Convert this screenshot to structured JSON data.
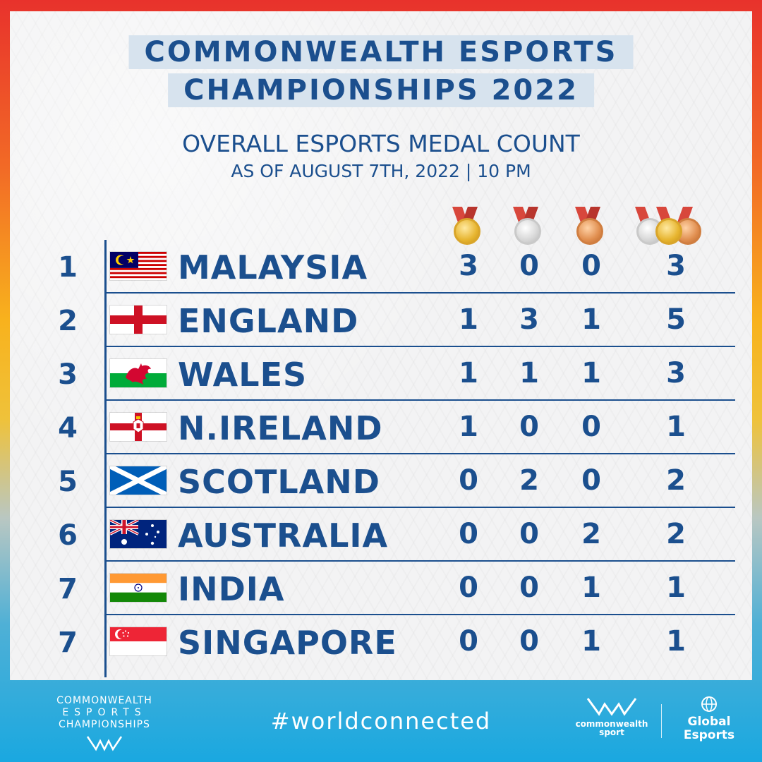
{
  "header": {
    "title_line1": "COMMONWEALTH ESPORTS",
    "title_line2": "CHAMPIONSHIPS 2022",
    "subtitle": "OVERALL ESPORTS MEDAL COUNT",
    "date_line": "AS OF AUGUST 7TH, 2022 | 10 PM"
  },
  "columns": [
    "gold-medal-icon",
    "silver-medal-icon",
    "bronze-medal-icon",
    "total-medals-icon"
  ],
  "rows": [
    {
      "rank": "1",
      "country": "MALAYSIA",
      "gold": "3",
      "silver": "0",
      "bronze": "0",
      "total": "3"
    },
    {
      "rank": "2",
      "country": "ENGLAND",
      "gold": "1",
      "silver": "3",
      "bronze": "1",
      "total": "5"
    },
    {
      "rank": "3",
      "country": "WALES",
      "gold": "1",
      "silver": "1",
      "bronze": "1",
      "total": "3"
    },
    {
      "rank": "4",
      "country": "N.IRELAND",
      "gold": "1",
      "silver": "0",
      "bronze": "0",
      "total": "1"
    },
    {
      "rank": "5",
      "country": "SCOTLAND",
      "gold": "0",
      "silver": "2",
      "bronze": "0",
      "total": "2"
    },
    {
      "rank": "6",
      "country": "AUSTRALIA",
      "gold": "0",
      "silver": "0",
      "bronze": "2",
      "total": "2"
    },
    {
      "rank": "7",
      "country": "INDIA",
      "gold": "0",
      "silver": "0",
      "bronze": "1",
      "total": "1"
    },
    {
      "rank": "7",
      "country": "SINGAPORE",
      "gold": "0",
      "silver": "0",
      "bronze": "1",
      "total": "1"
    }
  ],
  "footer": {
    "logo_line1": "COMMONWEALTH",
    "logo_line2": "ESPORTS",
    "logo_line3": "CHAMPIONSHIPS",
    "hashtag": "#worldconnected",
    "sport_line1": "commonwealth",
    "sport_line2": "sport",
    "global_line1": "Global",
    "global_line2": "Esports"
  },
  "colors": {
    "primary": "#1b4f8e",
    "gold": "#e7b530",
    "silver": "#d7d7d7",
    "bronze": "#e08e4f"
  }
}
